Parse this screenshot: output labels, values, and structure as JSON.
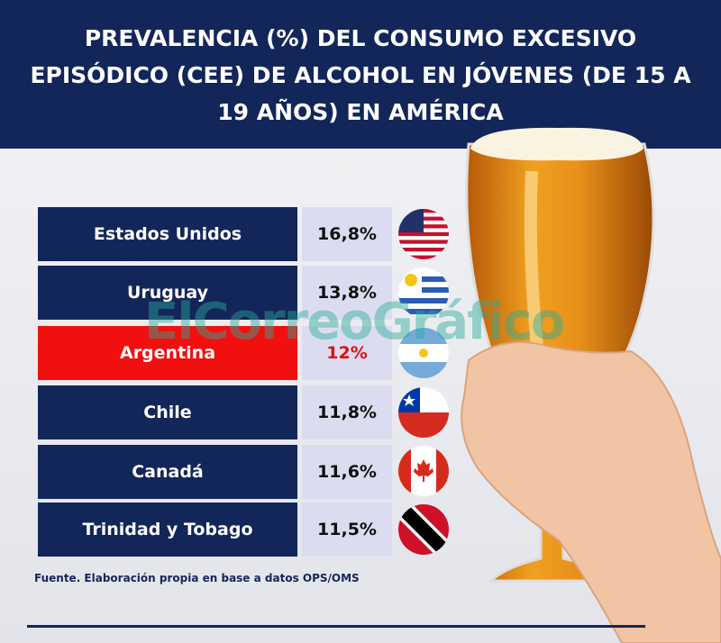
{
  "header": {
    "title": "PREVALENCIA (%) DEL CONSUMO EXCESIVO EPISÓDICO (CEE) DE ALCOHOL EN JÓVENES (DE 15 A 19 AÑOS) EN AMÉRICA"
  },
  "table": {
    "rows": [
      [
        "Estados Unidos",
        "16,8%"
      ],
      [
        "Uruguay",
        "13,8%"
      ],
      [
        "Argentina",
        "12%"
      ],
      [
        "Chile",
        "11,8%"
      ],
      [
        "Canadá",
        "11,6%"
      ],
      [
        "Trinidad y Tobago",
        "11,5%"
      ]
    ]
  },
  "watermark": "ElCorreoGráfico",
  "footer": {
    "source": "Fuente. Elaboración propia en base a datos OPS/OMS"
  }
}
